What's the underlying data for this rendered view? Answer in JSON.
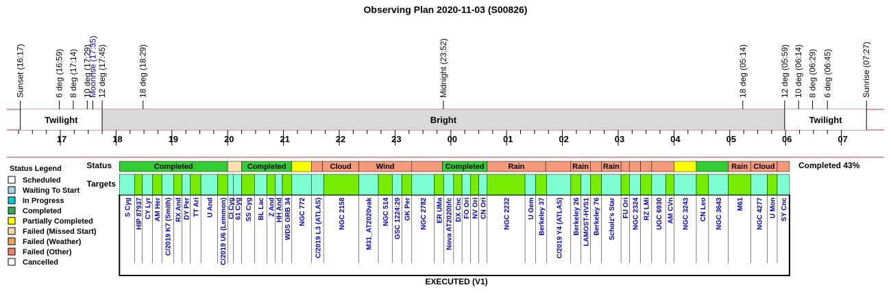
{
  "title": "Observing Plan 2020-11-03 (S00826)",
  "footer_label": "EXECUTED (V1)",
  "completion_text": "Completed 43%",
  "row_labels": {
    "status": "Status",
    "targets": "Targets"
  },
  "colors": {
    "twilight_band": "#ffffff",
    "bright_band": "#d9d9d9",
    "band_line": "#cc3333",
    "completed": "#33cc33",
    "failed_missed_start": "#ffe0b0",
    "partially_completed": "#ffff00",
    "failed_other": "#f49a7a",
    "waiting": "#7fffd4",
    "target_completed": "#77ee00",
    "link_text": "#0000cc"
  },
  "chart_data": {
    "type": "timeline",
    "x_unit": "hour",
    "x_range": [
      16.1,
      31.5
    ],
    "x_ticks": [
      {
        "label": "17",
        "value": 17
      },
      {
        "label": "18",
        "value": 18
      },
      {
        "label": "19",
        "value": 19
      },
      {
        "label": "20",
        "value": 20
      },
      {
        "label": "21",
        "value": 21
      },
      {
        "label": "22",
        "value": 22
      },
      {
        "label": "23",
        "value": 23
      },
      {
        "label": "00",
        "value": 24
      },
      {
        "label": "01",
        "value": 25
      },
      {
        "label": "02",
        "value": 26
      },
      {
        "label": "03",
        "value": 27
      },
      {
        "label": "04",
        "value": 28
      },
      {
        "label": "05",
        "value": 29
      },
      {
        "label": "06",
        "value": 30
      },
      {
        "label": "07",
        "value": 31
      }
    ],
    "events": [
      {
        "label": "Sunset (16:17)",
        "time": 16.283,
        "color": "#000000"
      },
      {
        "label": "6 deg (16:59)",
        "time": 16.983,
        "color": "#000000"
      },
      {
        "label": "8 deg (17:14)",
        "time": 17.233,
        "color": "#000000"
      },
      {
        "label": "10 deg (17:29)",
        "time": 17.483,
        "color": "#000000"
      },
      {
        "label": "Moonrise (17:35)",
        "time": 17.583,
        "color": "#0000cc"
      },
      {
        "label": "12 deg (17:45)",
        "time": 17.75,
        "color": "#000000"
      },
      {
        "label": "18 deg (18:29)",
        "time": 18.483,
        "color": "#000000"
      },
      {
        "label": "Midnight (23:52)",
        "time": 23.867,
        "color": "#000000"
      },
      {
        "label": "18 deg (05:14)",
        "time": 29.233,
        "color": "#000000"
      },
      {
        "label": "12 deg (05:59)",
        "time": 29.983,
        "color": "#000000"
      },
      {
        "label": "10 deg (06:14)",
        "time": 30.233,
        "color": "#000000"
      },
      {
        "label": "8 deg (06:29)",
        "time": 30.483,
        "color": "#000000"
      },
      {
        "label": "6 deg (06:45)",
        "time": 30.75,
        "color": "#000000"
      },
      {
        "label": "Sunrise (07:27)",
        "time": 31.45,
        "color": "#000000"
      }
    ],
    "sky_bands": [
      {
        "label": "Twilight",
        "start": 16.283,
        "end": 17.75,
        "fill": "#ffffff"
      },
      {
        "label": "Bright",
        "start": 17.75,
        "end": 29.983,
        "fill": "#d9d9d9"
      },
      {
        "label": "Twilight",
        "start": 29.983,
        "end": 31.45,
        "fill": "#ffffff"
      }
    ],
    "legend": {
      "title": "Status Legend",
      "items": [
        {
          "label": "Scheduled",
          "color": "#ffffff"
        },
        {
          "label": "Waiting To Start",
          "color": "#a8d0e0"
        },
        {
          "label": "In Progress",
          "color": "#00cccc"
        },
        {
          "label": "Completed",
          "color": "#33aa55"
        },
        {
          "label": "Partially Completed",
          "color": "#ffff00"
        },
        {
          "label": "Failed (Missed Start)",
          "color": "#ffd9a8"
        },
        {
          "label": "Failed (Weather)",
          "color": "#f4a460"
        },
        {
          "label": "Failed (Other)",
          "color": "#f08070"
        },
        {
          "label": "Cancelled",
          "color": "#ffffff"
        }
      ]
    },
    "status_segments": [
      {
        "label": "Completed",
        "start": 18.06,
        "end": 20.0,
        "fill": "#33cc33"
      },
      {
        "label": "",
        "start": 20.0,
        "end": 20.25,
        "fill": "#ffe0b0"
      },
      {
        "label": "Completed",
        "start": 20.25,
        "end": 21.15,
        "fill": "#33cc33"
      },
      {
        "label": "",
        "start": 21.15,
        "end": 21.5,
        "fill": "#ffff00"
      },
      {
        "label": "",
        "start": 21.5,
        "end": 21.7,
        "fill": "#f49a7a"
      },
      {
        "label": "Cloud",
        "start": 21.7,
        "end": 22.35,
        "fill": "#f49a7a"
      },
      {
        "label": "Wind",
        "start": 22.35,
        "end": 23.3,
        "fill": "#f49a7a"
      },
      {
        "label": "",
        "start": 23.3,
        "end": 23.85,
        "fill": "#f49a7a"
      },
      {
        "label": "Completed",
        "start": 23.85,
        "end": 24.65,
        "fill": "#33cc33"
      },
      {
        "label": "Rain",
        "start": 24.65,
        "end": 25.7,
        "fill": "#f49a7a"
      },
      {
        "label": "",
        "start": 25.7,
        "end": 26.15,
        "fill": "#f49a7a"
      },
      {
        "label": "Rain",
        "start": 26.15,
        "end": 26.5,
        "fill": "#f49a7a"
      },
      {
        "label": "",
        "start": 26.5,
        "end": 26.7,
        "fill": "#f49a7a"
      },
      {
        "label": "Rain",
        "start": 26.7,
        "end": 27.05,
        "fill": "#f49a7a"
      },
      {
        "label": "",
        "start": 27.05,
        "end": 27.2,
        "fill": "#f49a7a"
      },
      {
        "label": "",
        "start": 27.2,
        "end": 27.4,
        "fill": "#f49a7a"
      },
      {
        "label": "",
        "start": 27.4,
        "end": 27.6,
        "fill": "#f49a7a"
      },
      {
        "label": "",
        "start": 27.6,
        "end": 28.0,
        "fill": "#f49a7a"
      },
      {
        "label": "",
        "start": 28.0,
        "end": 28.4,
        "fill": "#ffff00"
      },
      {
        "label": "",
        "start": 28.4,
        "end": 28.97,
        "fill": "#33cc33"
      },
      {
        "label": "Rain",
        "start": 28.97,
        "end": 29.38,
        "fill": "#f49a7a"
      },
      {
        "label": "Cloud",
        "start": 29.38,
        "end": 29.85,
        "fill": "#f49a7a"
      },
      {
        "label": "",
        "start": 29.85,
        "end": 30.07,
        "fill": "#f49a7a"
      }
    ],
    "targets": [
      {
        "name": "S Cyg",
        "start": 18.06,
        "end": 18.33,
        "fill": "#7fffd4"
      },
      {
        "name": "HIP 87937",
        "start": 18.33,
        "end": 18.47,
        "fill": "#77ee00"
      },
      {
        "name": "CY Lyr",
        "start": 18.47,
        "end": 18.65,
        "fill": "#7fffd4"
      },
      {
        "name": "AM Her",
        "start": 18.65,
        "end": 18.82,
        "fill": "#77ee00"
      },
      {
        "name": "C/2019 K7 (Smith)",
        "start": 18.82,
        "end": 19.03,
        "fill": "#7fffd4"
      },
      {
        "name": "RX And",
        "start": 19.03,
        "end": 19.18,
        "fill": "#77ee00"
      },
      {
        "name": "DY Per",
        "start": 19.18,
        "end": 19.33,
        "fill": "#7fffd4"
      },
      {
        "name": "TT Ari",
        "start": 19.33,
        "end": 19.52,
        "fill": "#77ee00"
      },
      {
        "name": "U And",
        "start": 19.52,
        "end": 19.82,
        "fill": "#7fffd4"
      },
      {
        "name": "C/2019 U6 (Lemmon)",
        "start": 19.82,
        "end": 20.0,
        "fill": "#77ee00"
      },
      {
        "name": "CI Cyg",
        "start": 20.0,
        "end": 20.1,
        "fill": "#7fffd4"
      },
      {
        "name": "61 Cyg",
        "start": 20.1,
        "end": 20.25,
        "fill": "#7fffd4"
      },
      {
        "name": "SS Cyg",
        "start": 20.25,
        "end": 20.48,
        "fill": "#77ee00"
      },
      {
        "name": "BL Lac",
        "start": 20.48,
        "end": 20.7,
        "fill": "#7fffd4"
      },
      {
        "name": "Z And",
        "start": 20.7,
        "end": 20.85,
        "fill": "#77ee00"
      },
      {
        "name": "HH And",
        "start": 20.85,
        "end": 20.98,
        "fill": "#7fffd4"
      },
      {
        "name": "WDS GRB 34",
        "start": 20.98,
        "end": 21.15,
        "fill": "#77ee00"
      },
      {
        "name": "NGC 772",
        "start": 21.15,
        "end": 21.5,
        "fill": "#7fffd4"
      },
      {
        "name": "C/2019 L3 (ATLAS)",
        "start": 21.5,
        "end": 21.72,
        "fill": "#7fffd4"
      },
      {
        "name": "NGC 2158",
        "start": 21.72,
        "end": 22.35,
        "fill": "#77ee00"
      },
      {
        "name": "M31_AT2020vak",
        "start": 22.35,
        "end": 22.7,
        "fill": "#7fffd4"
      },
      {
        "name": "NGC 514",
        "start": 22.7,
        "end": 22.95,
        "fill": "#77ee00"
      },
      {
        "name": "GSC 1224:29",
        "start": 22.95,
        "end": 23.12,
        "fill": "#7fffd4"
      },
      {
        "name": "GK Per",
        "start": 23.12,
        "end": 23.3,
        "fill": "#77ee00"
      },
      {
        "name": "NGC 2782",
        "start": 23.3,
        "end": 23.7,
        "fill": "#7fffd4"
      },
      {
        "name": "ER UMa",
        "start": 23.7,
        "end": 23.87,
        "fill": "#77ee00"
      },
      {
        "name": "Nova AT2020bfc",
        "start": 23.87,
        "end": 24.05,
        "fill": "#7fffd4"
      },
      {
        "name": "DX Cnc",
        "start": 24.05,
        "end": 24.2,
        "fill": "#77ee00"
      },
      {
        "name": "FO Ori",
        "start": 24.2,
        "end": 24.35,
        "fill": "#7fffd4"
      },
      {
        "name": "NV Ori",
        "start": 24.35,
        "end": 24.5,
        "fill": "#77ee00"
      },
      {
        "name": "CN Ori",
        "start": 24.5,
        "end": 24.65,
        "fill": "#7fffd4"
      },
      {
        "name": "NGC 2232",
        "start": 24.65,
        "end": 25.33,
        "fill": "#77ee00"
      },
      {
        "name": "U Gem",
        "start": 25.33,
        "end": 25.52,
        "fill": "#7fffd4"
      },
      {
        "name": "Berkeley 37",
        "start": 25.52,
        "end": 25.72,
        "fill": "#77ee00"
      },
      {
        "name": "C/2019 Y4 (ATLAS)",
        "start": 25.72,
        "end": 26.15,
        "fill": "#7fffd4"
      },
      {
        "name": "Berkeley 26",
        "start": 26.15,
        "end": 26.33,
        "fill": "#77ee00"
      },
      {
        "name": "LAMOST-HVS1",
        "start": 26.33,
        "end": 26.5,
        "fill": "#7fffd4"
      },
      {
        "name": "Berkeley 76",
        "start": 26.5,
        "end": 26.7,
        "fill": "#77ee00"
      },
      {
        "name": "Scholz's Star",
        "start": 26.7,
        "end": 27.05,
        "fill": "#7fffd4"
      },
      {
        "name": "FU Ori",
        "start": 27.05,
        "end": 27.2,
        "fill": "#77ee00"
      },
      {
        "name": "NGC 2324",
        "start": 27.2,
        "end": 27.4,
        "fill": "#7fffd4"
      },
      {
        "name": "RZ LMi",
        "start": 27.4,
        "end": 27.6,
        "fill": "#77ee00"
      },
      {
        "name": "UGC 6930",
        "start": 27.6,
        "end": 27.85,
        "fill": "#7fffd4"
      },
      {
        "name": "AM CVn",
        "start": 27.85,
        "end": 28.0,
        "fill": "#77ee00"
      },
      {
        "name": "NGC 3243",
        "start": 28.0,
        "end": 28.4,
        "fill": "#7fffd4"
      },
      {
        "name": "CN Leo",
        "start": 28.4,
        "end": 28.62,
        "fill": "#77ee00"
      },
      {
        "name": "NGC 3643",
        "start": 28.62,
        "end": 28.97,
        "fill": "#7fffd4"
      },
      {
        "name": "M61",
        "start": 28.97,
        "end": 29.38,
        "fill": "#77ee00"
      },
      {
        "name": "NGC 4277",
        "start": 29.38,
        "end": 29.67,
        "fill": "#7fffd4"
      },
      {
        "name": "U Mon",
        "start": 29.67,
        "end": 29.85,
        "fill": "#77ee00"
      },
      {
        "name": "SY Cnc",
        "start": 29.85,
        "end": 30.07,
        "fill": "#7fffd4"
      }
    ]
  }
}
